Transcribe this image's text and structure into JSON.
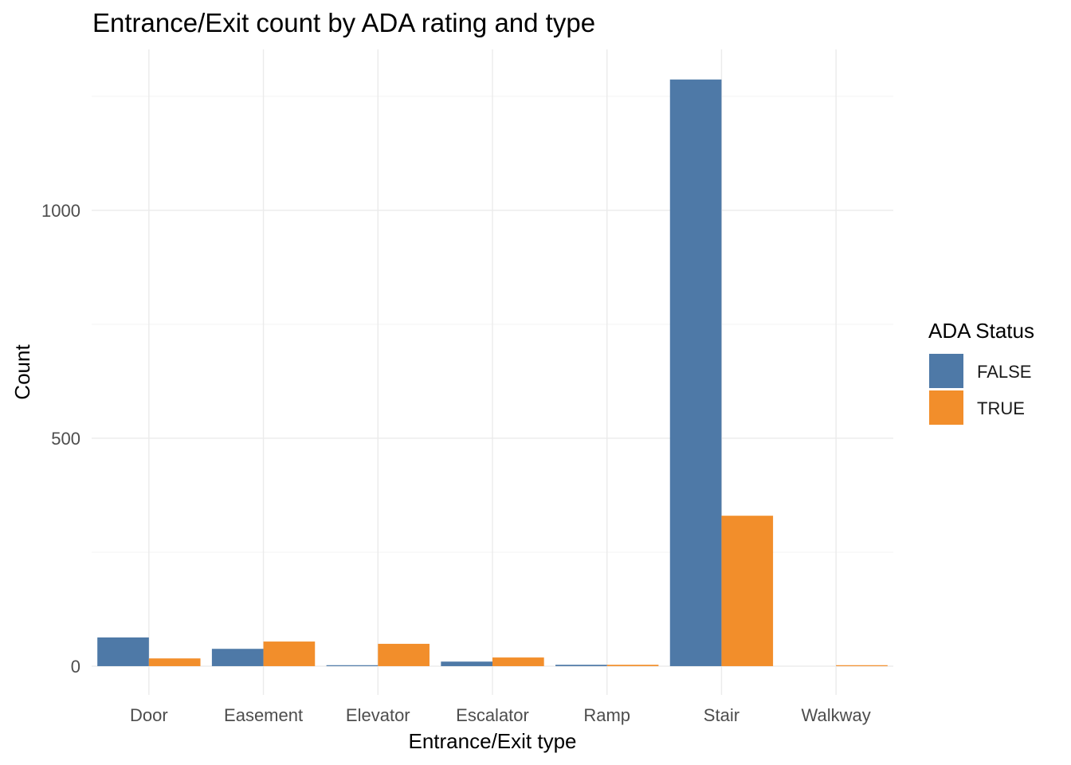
{
  "chart_data": {
    "type": "bar",
    "title": "Entrance/Exit count by ADA rating and type",
    "xlabel": "Entrance/Exit type",
    "ylabel": "Count",
    "categories": [
      "Door",
      "Easement",
      "Elevator",
      "Escalator",
      "Ramp",
      "Stair",
      "Walkway"
    ],
    "series": [
      {
        "name": "FALSE",
        "color": "#4e79a7",
        "values": [
          63,
          38,
          1,
          10,
          3,
          1287,
          0
        ]
      },
      {
        "name": "TRUE",
        "color": "#f28e2b",
        "values": [
          17,
          54,
          49,
          19,
          3,
          330,
          1
        ]
      }
    ],
    "ylim": [
      -63,
      1353
    ],
    "yticks": [
      0,
      500,
      1000
    ],
    "grid": true,
    "legend": {
      "title": "ADA Status",
      "position": "right"
    }
  }
}
